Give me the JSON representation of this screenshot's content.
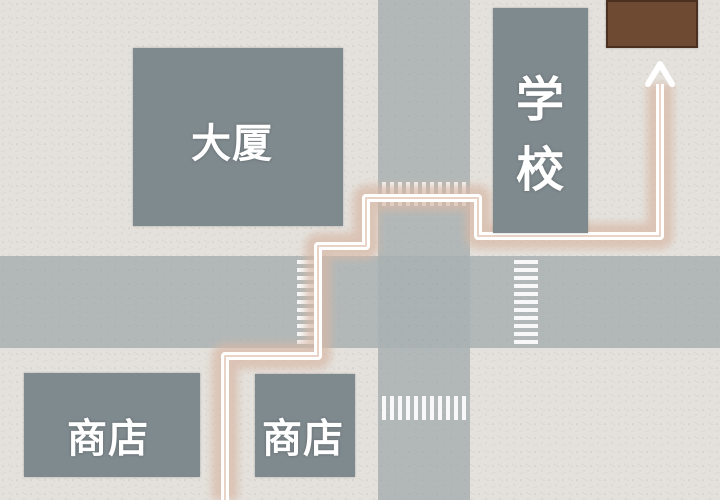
{
  "map": {
    "colors": {
      "background": "#e4e1dc",
      "road": "#a9b0b2",
      "building": "#7f8a8e",
      "destination": "#6e4a32",
      "route_line": "#ffffff",
      "route_glow": "#d8b8a6"
    },
    "buildings": {
      "tower": {
        "label": "大厦"
      },
      "school": {
        "label_top": "学",
        "label_bottom": "校"
      },
      "shop_left": {
        "label": "商店"
      },
      "shop_right": {
        "label": "商店"
      },
      "destination": {
        "label": ""
      }
    },
    "route": {
      "direction_icon": "arrow-up-icon",
      "start": "bottom-left",
      "end": "destination"
    }
  }
}
